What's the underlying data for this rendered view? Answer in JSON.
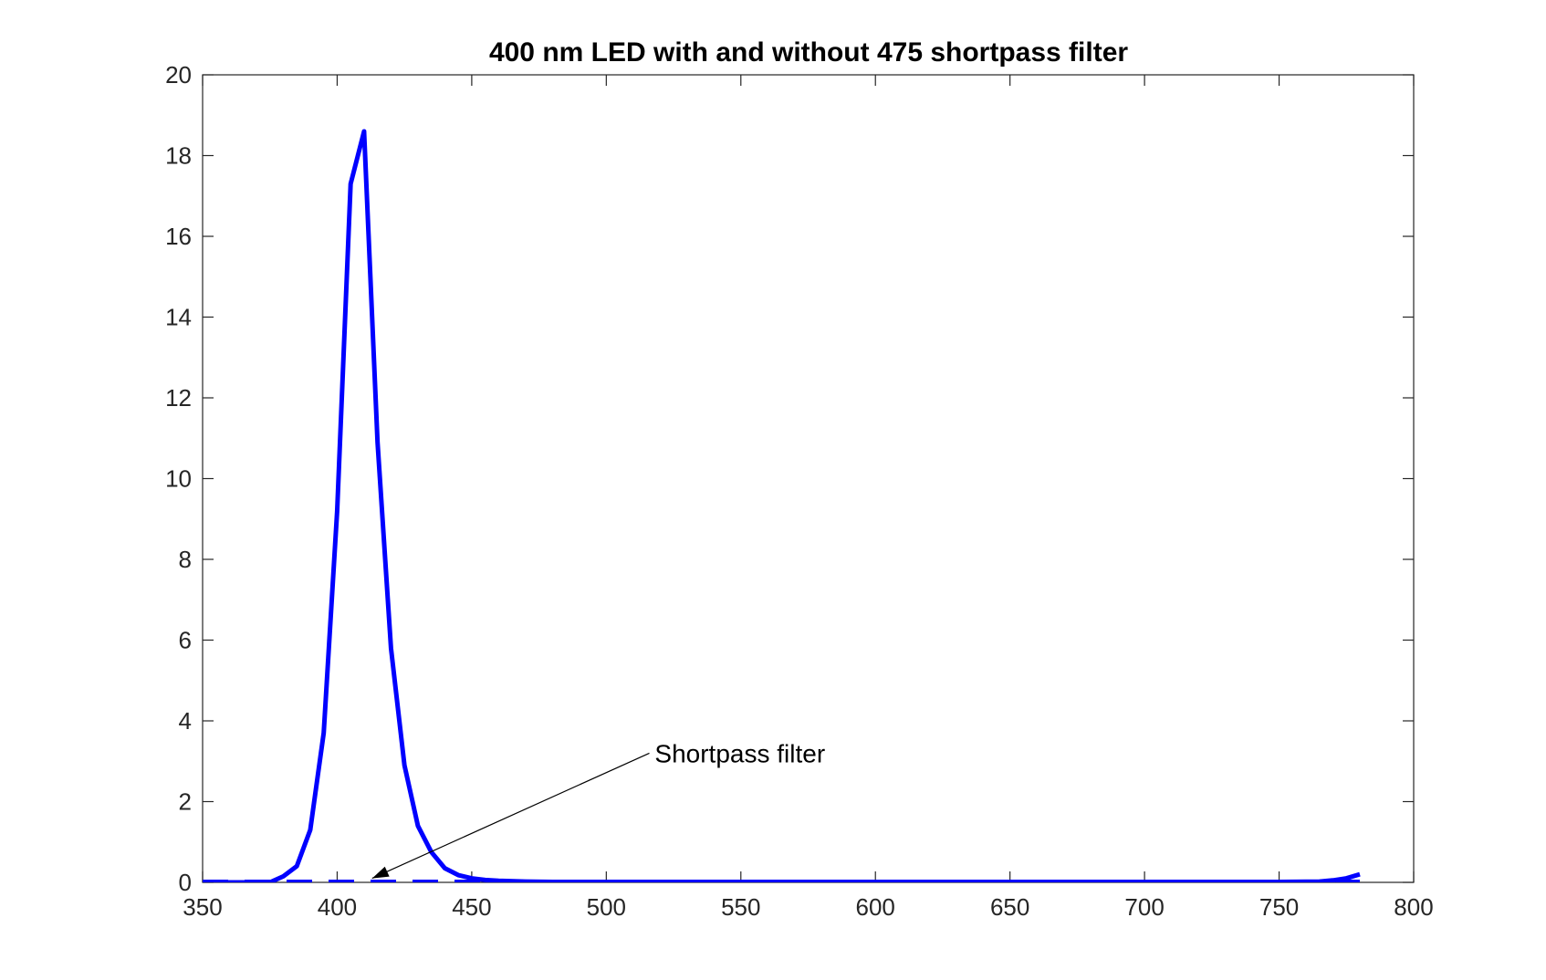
{
  "chart_data": {
    "type": "line",
    "title": "400 nm LED with and without 475 shortpass filter",
    "xlabel": "",
    "ylabel": "",
    "xlim": [
      350,
      800
    ],
    "ylim": [
      0,
      20
    ],
    "xticks": [
      350,
      400,
      450,
      500,
      550,
      600,
      650,
      700,
      750,
      800
    ],
    "yticks": [
      0,
      2,
      4,
      6,
      8,
      10,
      12,
      14,
      16,
      18,
      20
    ],
    "grid": false,
    "line_color": "#0000ff",
    "series": [
      {
        "style": "solid",
        "x": [
          350,
          375,
          380,
          385,
          390,
          395,
          400,
          405,
          410,
          415,
          420,
          425,
          430,
          435,
          440,
          445,
          450,
          455,
          460,
          470,
          480,
          500,
          550,
          600,
          650,
          700,
          750,
          765,
          770,
          775,
          780
        ],
        "y": [
          0,
          0,
          0.15,
          0.4,
          1.3,
          3.7,
          9.2,
          17.3,
          18.6,
          10.9,
          5.8,
          2.9,
          1.4,
          0.75,
          0.35,
          0.18,
          0.1,
          0.06,
          0.04,
          0.02,
          0.01,
          0.01,
          0.01,
          0.01,
          0.01,
          0.01,
          0.01,
          0.02,
          0.05,
          0.1,
          0.2
        ]
      },
      {
        "style": "dashed",
        "x": [
          350,
          400,
          450,
          500,
          550,
          600,
          650,
          700,
          750,
          780
        ],
        "y": [
          0,
          0,
          0,
          0,
          0,
          0,
          0,
          0,
          0,
          0
        ]
      }
    ],
    "annotation": {
      "text": "Shortpass filter",
      "arrow_to": [
        413,
        0.1
      ],
      "arrow_from": [
        516,
        3.2
      ],
      "text_at": [
        518,
        3.2
      ]
    }
  }
}
